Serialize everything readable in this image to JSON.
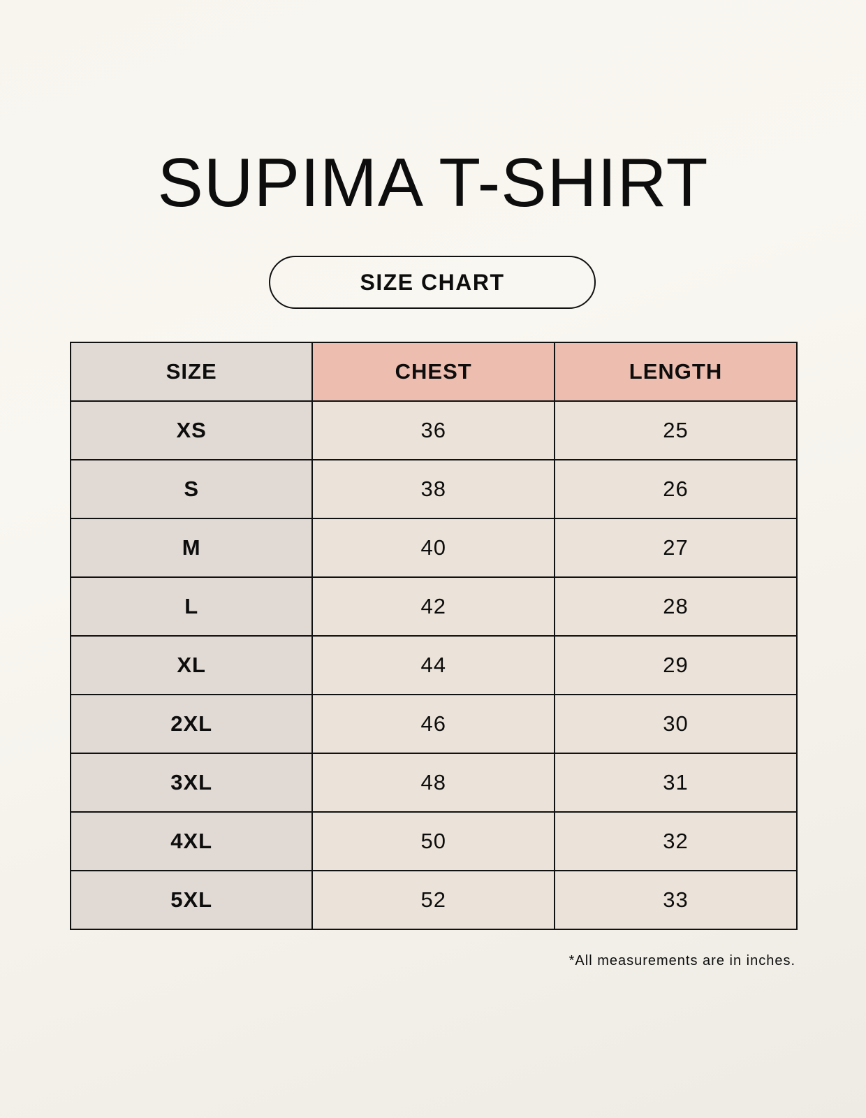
{
  "title": "SUPIMA T-SHIRT",
  "subtitle": "SIZE CHART",
  "table": {
    "headers": [
      "SIZE",
      "CHEST",
      "LENGTH"
    ],
    "rows": [
      [
        "XS",
        "36",
        "25"
      ],
      [
        "S",
        "38",
        "26"
      ],
      [
        "M",
        "40",
        "27"
      ],
      [
        "L",
        "42",
        "28"
      ],
      [
        "XL",
        "44",
        "29"
      ],
      [
        "2XL",
        "46",
        "30"
      ],
      [
        "3XL",
        "48",
        "31"
      ],
      [
        "4XL",
        "50",
        "32"
      ],
      [
        "5XL",
        "52",
        "33"
      ]
    ]
  },
  "footnote": "*All measurements are in inches.",
  "colors": {
    "size_column": "#e1d9d3",
    "header_accent": "#edbdaf",
    "cell": "#ebe3d9"
  }
}
